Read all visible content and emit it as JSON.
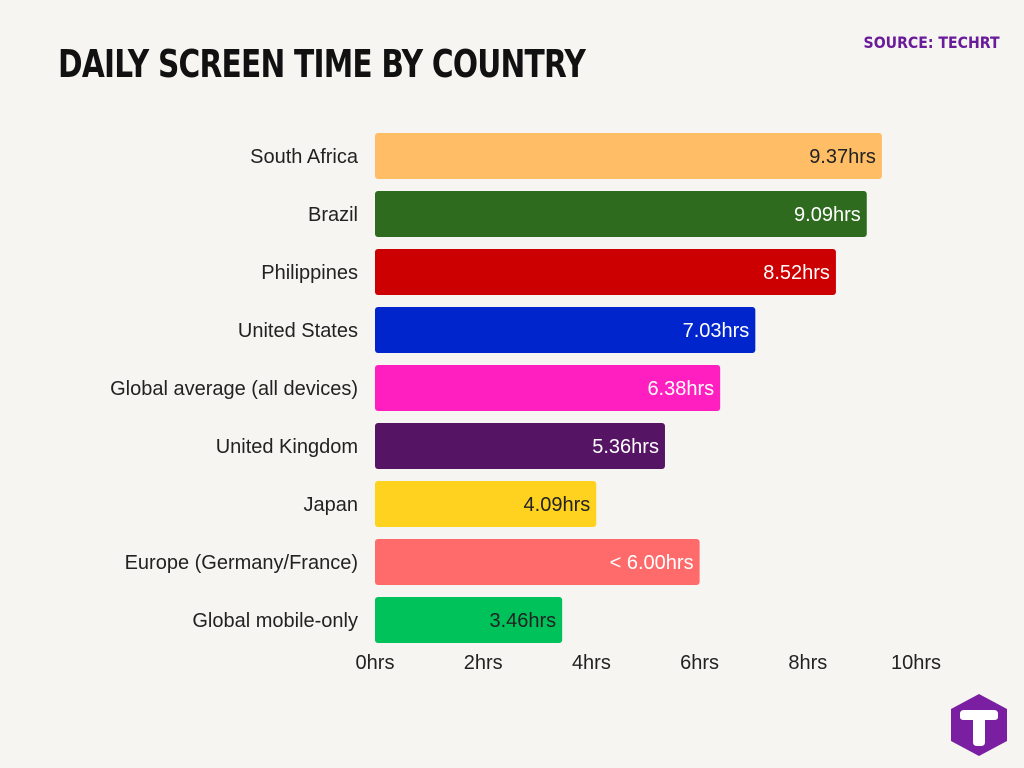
{
  "header": {
    "title": "DAILY SCREEN TIME BY COUNTRY",
    "source": "SOURCE: TECHRT"
  },
  "logo": {
    "icon": "techrt-logo-icon",
    "letter": "T",
    "color": "#7b1fa2"
  },
  "chart_data": {
    "type": "bar",
    "orientation": "horizontal",
    "title": "DAILY SCREEN TIME BY COUNTRY",
    "xlabel": "",
    "ylabel": "",
    "xlim": [
      0,
      10
    ],
    "x_ticks": [
      {
        "value": 0,
        "label": "0hrs"
      },
      {
        "value": 2,
        "label": "2hrs"
      },
      {
        "value": 4,
        "label": "4hrs"
      },
      {
        "value": 6,
        "label": "6hrs"
      },
      {
        "value": 8,
        "label": "8hrs"
      },
      {
        "value": 10,
        "label": "10hrs"
      }
    ],
    "grid": false,
    "legend": "none",
    "bars": [
      {
        "category": "South Africa",
        "value": 9.37,
        "label": "9.37hrs",
        "color": "#ffbd66",
        "text_color": "#222222"
      },
      {
        "category": "Brazil",
        "value": 9.09,
        "label": "9.09hrs",
        "color": "#2e6b1e",
        "text_color": "#ffffff"
      },
      {
        "category": "Philippines",
        "value": 8.52,
        "label": "8.52hrs",
        "color": "#cc0000",
        "text_color": "#ffffff"
      },
      {
        "category": "United States",
        "value": 7.03,
        "label": "7.03hrs",
        "color": "#0025cc",
        "text_color": "#ffffff"
      },
      {
        "category": "Global average (all devices)",
        "value": 6.38,
        "label": "6.38hrs",
        "color": "#ff1fc0",
        "text_color": "#ffffff"
      },
      {
        "category": "United Kingdom",
        "value": 5.36,
        "label": "5.36hrs",
        "color": "#561464",
        "text_color": "#ffffff"
      },
      {
        "category": "Japan",
        "value": 4.09,
        "label": "4.09hrs",
        "color": "#ffd21f",
        "text_color": "#222222"
      },
      {
        "category": "Europe (Germany/France)",
        "value": 6.0,
        "label": "< 6.00hrs",
        "color": "#ff6a6a",
        "text_color": "#ffffff"
      },
      {
        "category": "Global mobile-only",
        "value": 3.46,
        "label": "3.46hrs",
        "color": "#00c25a",
        "text_color": "#222222"
      }
    ]
  }
}
